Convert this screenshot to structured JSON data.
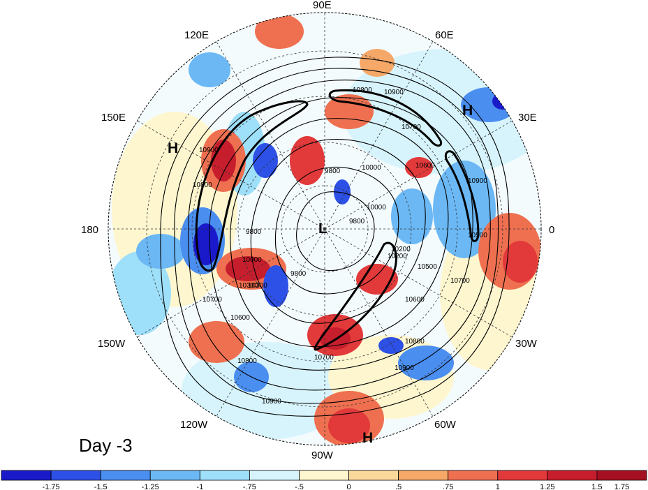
{
  "panel_label": "Day -3",
  "longitude_labels": [
    "90E",
    "60E",
    "30E",
    "0",
    "30W",
    "60W",
    "90W",
    "120W",
    "150W",
    "180",
    "150E",
    "120E"
  ],
  "pressure_markers": [
    {
      "name": "high-pressure-siberia",
      "text": "H"
    },
    {
      "name": "high-pressure-europe",
      "text": "H"
    },
    {
      "name": "low-pressure-pole",
      "text": "L"
    },
    {
      "name": "high-pressure-south-america",
      "text": "H"
    }
  ],
  "contour_labels": [
    "10900",
    "10800",
    "10700",
    "10600",
    "10500",
    "10300",
    "10200",
    "10000",
    "9800",
    "10900",
    "10800",
    "10700",
    "10600",
    "10300",
    "10000",
    "9800",
    "9800",
    "10800",
    "10900",
    "10700",
    "10900",
    "10800",
    "10900",
    "10000",
    "10700",
    "10600",
    "10500",
    "10200",
    "9800"
  ],
  "colorbar": {
    "colors": [
      "#1a1acb",
      "#2d50e6",
      "#4a8ef0",
      "#6bb8f5",
      "#9edff9",
      "#d7f4fc",
      "#fdf6cf",
      "#fbd99b",
      "#f6a868",
      "#ef7050",
      "#e2393a",
      "#c71e2d",
      "#a50f22"
    ],
    "tick_labels": [
      "-1.75",
      "-1.5",
      "-1.25",
      "-1",
      "-.75",
      "-.5",
      "0",
      ".5",
      ".75",
      "1",
      "1.25",
      "1.5",
      "1.75"
    ]
  },
  "anomaly_colors": {
    "strong_positive": "#c71e2d",
    "positive": "#ef7050",
    "weak_positive": "#fbd99b",
    "weak_negative": "#9edff9",
    "negative": "#4a8ef0",
    "strong_negative": "#1a1acb"
  }
}
